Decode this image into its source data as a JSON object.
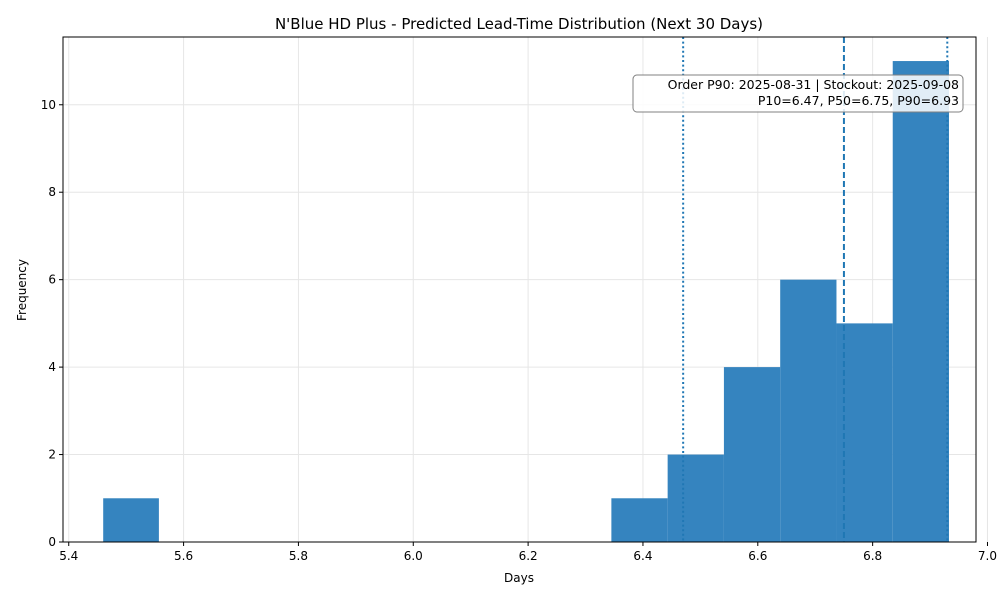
{
  "chart_data": {
    "type": "bar",
    "title": "N'Blue HD Plus - Predicted Lead-Time Distribution (Next 30 Days)",
    "xlabel": "Days",
    "ylabel": "Frequency",
    "xlim": [
      5.39,
      6.98
    ],
    "ylim": [
      0,
      11.55
    ],
    "xticks": [
      5.4,
      5.6,
      5.8,
      6.0,
      6.2,
      6.4,
      6.6,
      6.8,
      7.0
    ],
    "xtick_labels": [
      "5.4",
      "5.6",
      "5.8",
      "6.0",
      "6.2",
      "6.4",
      "6.6",
      "6.8",
      "7.0"
    ],
    "yticks": [
      0,
      2,
      4,
      6,
      8,
      10
    ],
    "ytick_labels": [
      "0",
      "2",
      "4",
      "6",
      "8",
      "10"
    ],
    "grid": true,
    "bins": [
      {
        "start": 5.46,
        "end": 5.557,
        "count": 1
      },
      {
        "start": 5.557,
        "end": 5.655,
        "count": 0
      },
      {
        "start": 5.655,
        "end": 5.753,
        "count": 0
      },
      {
        "start": 5.753,
        "end": 5.851,
        "count": 0
      },
      {
        "start": 5.851,
        "end": 5.949,
        "count": 0
      },
      {
        "start": 5.949,
        "end": 6.047,
        "count": 0
      },
      {
        "start": 6.047,
        "end": 6.145,
        "count": 0
      },
      {
        "start": 6.145,
        "end": 6.243,
        "count": 0
      },
      {
        "start": 6.243,
        "end": 6.345,
        "count": 0
      },
      {
        "start": 6.345,
        "end": 6.443,
        "count": 1
      },
      {
        "start": 6.443,
        "end": 6.541,
        "count": 2
      },
      {
        "start": 6.541,
        "end": 6.639,
        "count": 4
      },
      {
        "start": 6.639,
        "end": 6.737,
        "count": 6
      },
      {
        "start": 6.737,
        "end": 6.835,
        "count": 5
      },
      {
        "start": 6.835,
        "end": 6.933,
        "count": 11
      }
    ],
    "reference_lines": [
      {
        "label": "P10",
        "x": 6.47,
        "style": "dotted"
      },
      {
        "label": "P50",
        "x": 6.75,
        "style": "dashed"
      },
      {
        "label": "P90",
        "x": 6.93,
        "style": "dotted"
      }
    ],
    "annotation": {
      "line1": "Order P90: 2025-08-31 | Stockout: 2025-09-08",
      "line2": "P10=6.47, P50=6.75, P90=6.93",
      "placement": "top-right"
    },
    "colors": {
      "bar": "#3584bf",
      "reference_line": "#1f77b4"
    }
  }
}
